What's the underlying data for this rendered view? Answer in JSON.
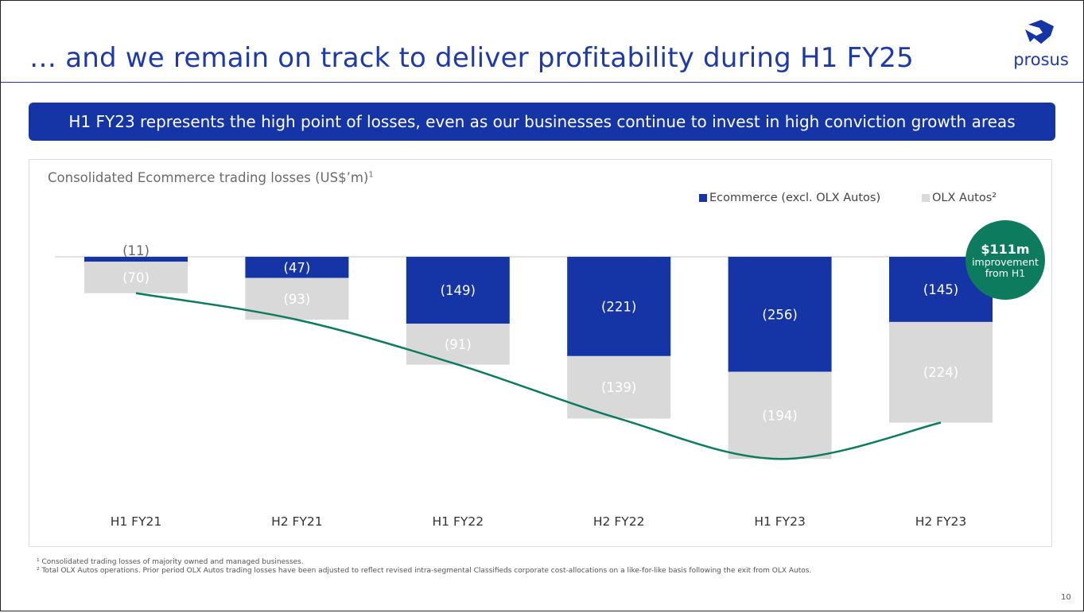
{
  "header": {
    "title": "… and we remain on track to deliver profitability during H1 FY25",
    "logo_text": "prosus"
  },
  "banner": {
    "text": "H1 FY23 represents the high point of losses, even as our businesses continue to invest in high conviction growth areas"
  },
  "callout": {
    "value": "$111m",
    "line1": "improvement",
    "line2": "from H1"
  },
  "chart_data": {
    "type": "bar",
    "title": "Consolidated Ecommerce trading losses (US$’m)",
    "title_footnote": "1",
    "categories": [
      "H1 FY21",
      "H2 FY21",
      "H1 FY22",
      "H2 FY22",
      "H1 FY23",
      "H2 FY23"
    ],
    "series": [
      {
        "name": "Ecommerce (excl. OLX Autos)",
        "values": [
          -11,
          -47,
          -149,
          -221,
          -256,
          -145
        ],
        "labels": [
          "(11)",
          "(47)",
          "(149)",
          "(221)",
          "(256)",
          "(145)"
        ],
        "color": "#1535a6"
      },
      {
        "name": "OLX Autos²",
        "values": [
          -70,
          -93,
          -91,
          -139,
          -194,
          -224
        ],
        "labels": [
          "(70)",
          "(93)",
          "(91)",
          "(139)",
          "(194)",
          "(224)"
        ],
        "color": "#d9d9d9"
      }
    ],
    "stacked": true,
    "trend_line": {
      "color": "#0d7b5e"
    },
    "legend_position": "top-right",
    "grid": false
  },
  "footnotes": [
    "¹ Consolidated trading losses of majority owned and managed businesses.",
    "² Total OLX Autos operations. Prior period OLX Autos trading losses have been adjusted to reflect revised intra-segmental Classifieds corporate cost-allocations on a like-for-like basis following the exit from OLX Autos."
  ],
  "page_number": "10"
}
